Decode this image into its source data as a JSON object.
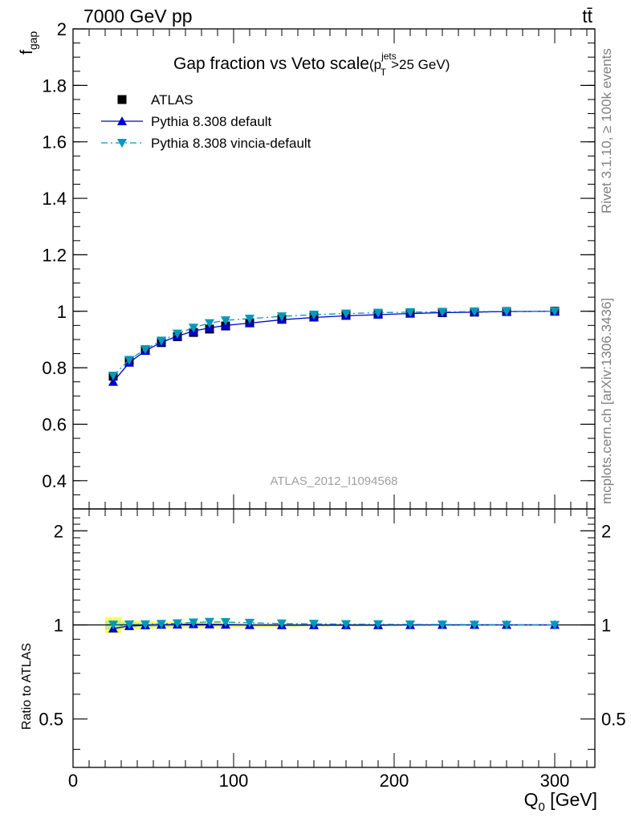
{
  "header": {
    "energy_label": "7000 GeV pp",
    "process_label": "tt̄"
  },
  "side_labels": {
    "rivet": "Rivet 3.1.10, ≥ 100k events",
    "mcplots": "mcplots.cern.ch [arXiv:1306.3436]"
  },
  "watermark": "ATLAS_2012_I1094568",
  "main_title": {
    "text": "Gap fraction vs Veto scale",
    "suffix_open": "(p",
    "sub": "T",
    "sup": "jets",
    "suffix_close": ">25 GeV)"
  },
  "y_label": {
    "main": "f",
    "sub": "gap"
  },
  "ratio_label": "Ratio to ATLAS",
  "x_label": {
    "main": "Q",
    "sub": "0",
    "unit": " [GeV]"
  },
  "legend": [
    {
      "label": "ATLAS",
      "marker": "square",
      "color": "#000000"
    },
    {
      "label": "Pythia 8.308 default",
      "marker": "triangle-up",
      "color": "#0000cc"
    },
    {
      "label": "Pythia 8.308 vincia-default",
      "marker": "triangle-down",
      "color": "#0099bb"
    }
  ],
  "chart_data": {
    "type": "scatter",
    "x": [
      25,
      35,
      45,
      55,
      65,
      75,
      85,
      95,
      110,
      130,
      150,
      170,
      190,
      210,
      230,
      250,
      270,
      300
    ],
    "xlim": [
      0,
      325
    ],
    "xticks": [
      0,
      100,
      200,
      300
    ],
    "ylim": [
      0.3,
      2.0
    ],
    "yticks": [
      0.4,
      0.6,
      0.8,
      1,
      1.2,
      1.4,
      1.6,
      1.8,
      2
    ],
    "ratio_ylim": [
      0.35,
      2.35
    ],
    "ratio_yticks": [
      0.5,
      1,
      2
    ],
    "series": [
      {
        "name": "ATLAS",
        "color": "#000000",
        "marker": "square",
        "values": [
          0.77,
          0.825,
          0.862,
          0.889,
          0.91,
          0.925,
          0.937,
          0.948,
          0.959,
          0.972,
          0.98,
          0.986,
          0.99,
          0.993,
          0.995,
          0.997,
          0.999,
          1.0
        ]
      },
      {
        "name": "Pythia 8.308 default",
        "color": "#0000cc",
        "marker": "triangle-up",
        "line": "solid",
        "values": [
          0.75,
          0.818,
          0.86,
          0.89,
          0.912,
          0.93,
          0.941,
          0.95,
          0.958,
          0.97,
          0.978,
          0.984,
          0.988,
          0.992,
          0.995,
          0.997,
          0.999,
          1.0
        ]
      },
      {
        "name": "Pythia 8.308 vincia-default",
        "color": "#0099bb",
        "marker": "triangle-down",
        "line": "dashdot",
        "values": [
          0.772,
          0.828,
          0.866,
          0.896,
          0.921,
          0.942,
          0.958,
          0.968,
          0.974,
          0.982,
          0.988,
          0.992,
          0.995,
          0.997,
          0.998,
          0.999,
          1.0,
          1.0
        ]
      }
    ],
    "ratio_band": {
      "color": "#ffff66",
      "inner_color": "#c6ef88",
      "half_width": [
        0.06,
        0.035,
        0.03,
        0.025,
        0.022,
        0.02,
        0.02,
        0.018,
        0.016,
        0.014,
        0.012,
        0.01,
        0.008,
        0.007,
        0.006,
        0.005,
        0.004,
        0.003
      ]
    }
  }
}
